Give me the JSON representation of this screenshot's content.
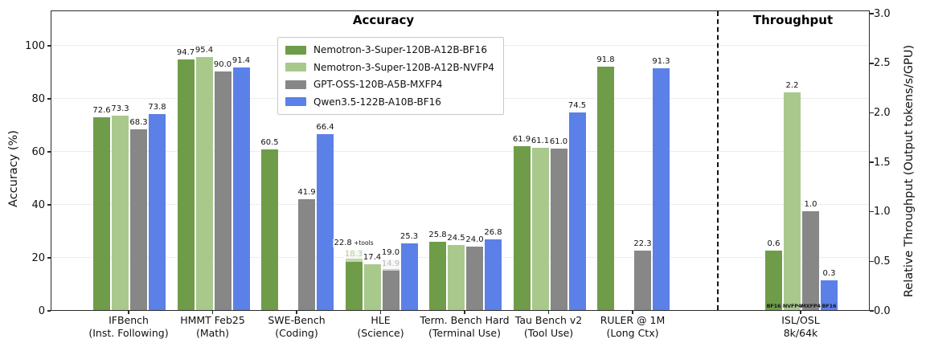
{
  "chart_data": {
    "type": "bar",
    "sections": [
      {
        "title": "Accuracy"
      },
      {
        "title": "Throughput"
      }
    ],
    "left_axis": {
      "label": "Accuracy (%)",
      "ticks": [
        {
          "label": "0",
          "value": 0
        },
        {
          "label": "20",
          "value": 20
        },
        {
          "label": "40",
          "value": 40
        },
        {
          "label": "60",
          "value": 60
        },
        {
          "label": "80",
          "value": 80
        },
        {
          "label": "100",
          "value": 100
        }
      ]
    },
    "right_axis": {
      "label": "Relative Throughput (Output tokens/s/GPU)",
      "ticks": [
        {
          "label": "0.0",
          "value": 0.0
        },
        {
          "label": "0.5",
          "value": 0.5
        },
        {
          "label": "1.0",
          "value": 1.0
        },
        {
          "label": "1.5",
          "value": 1.5
        },
        {
          "label": "2.0",
          "value": 2.0
        },
        {
          "label": "2.5",
          "value": 2.5
        },
        {
          "label": "3.0",
          "value": 3.0
        }
      ]
    },
    "legend": [
      {
        "name": "Nemotron-3-Super-120B-A12B-BF16",
        "color": "#6F9C49",
        "pale": "#b5cf9d"
      },
      {
        "name": "Nemotron-3-Super-120B-A12B-NVFP4",
        "color": "#A9C98C",
        "pale": "#cfe2bd"
      },
      {
        "name": "GPT-OSS-120B-A5B-MXFP4",
        "color": "#878787",
        "pale": "#b8b8b8"
      },
      {
        "name": "Qwen3.5-122B-A10B-BF16",
        "color": "#5B80E8",
        "pale": "#aec0f2"
      }
    ],
    "groups": [
      {
        "label": [
          "IFBench",
          "(Inst. Following)"
        ],
        "axis": "accuracy",
        "bars": [
          {
            "slot": 0,
            "series": 0,
            "value": 72.6,
            "label": "72.6"
          },
          {
            "slot": 1,
            "series": 1,
            "value": 73.3,
            "label": "73.3"
          },
          {
            "slot": 2,
            "series": 2,
            "value": 68.3,
            "label": "68.3"
          },
          {
            "slot": 3,
            "series": 3,
            "value": 73.8,
            "label": "73.8"
          }
        ]
      },
      {
        "label": [
          "HMMT Feb25",
          "(Math)"
        ],
        "axis": "accuracy",
        "bars": [
          {
            "slot": 0,
            "series": 0,
            "value": 94.7,
            "label": "94.7"
          },
          {
            "slot": 1,
            "series": 1,
            "value": 95.4,
            "label": "95.4"
          },
          {
            "slot": 2,
            "series": 2,
            "value": 90.0,
            "label": "90.0"
          },
          {
            "slot": 3,
            "series": 3,
            "value": 91.4,
            "label": "91.4"
          }
        ]
      },
      {
        "label": [
          "SWE-Bench",
          "(Coding)"
        ],
        "axis": "accuracy",
        "bars": [
          {
            "slot": 0,
            "series": 0,
            "value": 60.5,
            "label": "60.5"
          },
          {
            "slot": 2,
            "series": 2,
            "value": 41.9,
            "label": "41.9"
          },
          {
            "slot": 3,
            "series": 3,
            "value": 66.4,
            "label": "66.4"
          }
        ]
      },
      {
        "label": [
          "HLE",
          "(Science)"
        ],
        "axis": "accuracy",
        "bars": [
          {
            "slot": 0,
            "series": 0,
            "value": 18.3,
            "label": "18.3",
            "overlay": {
              "value": 22.8,
              "label": "22.8",
              "suffix": "+tools"
            }
          },
          {
            "slot": 1,
            "series": 1,
            "value": 17.4,
            "label": "17.4"
          },
          {
            "slot": 2,
            "series": 2,
            "value": 14.9,
            "label": "14.9",
            "overlay": {
              "value": 19.0,
              "label": "19.0",
              "suffix": ""
            }
          },
          {
            "slot": 3,
            "series": 3,
            "value": 25.3,
            "label": "25.3"
          }
        ]
      },
      {
        "label": [
          "Term. Bench Hard",
          "(Terminal Use)"
        ],
        "axis": "accuracy",
        "bars": [
          {
            "slot": 0,
            "series": 0,
            "value": 25.8,
            "label": "25.8"
          },
          {
            "slot": 1,
            "series": 1,
            "value": 24.5,
            "label": "24.5"
          },
          {
            "slot": 2,
            "series": 2,
            "value": 24.0,
            "label": "24.0"
          },
          {
            "slot": 3,
            "series": 3,
            "value": 26.8,
            "label": "26.8"
          }
        ]
      },
      {
        "label": [
          "Tau Bench v2",
          "(Tool Use)"
        ],
        "axis": "accuracy",
        "bars": [
          {
            "slot": 0,
            "series": 0,
            "value": 61.9,
            "label": "61.9"
          },
          {
            "slot": 1,
            "series": 1,
            "value": 61.1,
            "label": "61.1"
          },
          {
            "slot": 2,
            "series": 2,
            "value": 61.0,
            "label": "61.0"
          },
          {
            "slot": 3,
            "series": 3,
            "value": 74.5,
            "label": "74.5"
          }
        ]
      },
      {
        "label": [
          "RULER @ 1M",
          "(Long Ctx)"
        ],
        "axis": "accuracy",
        "bars": [
          {
            "slot": 0,
            "series": 0,
            "value": 91.8,
            "label": "91.8"
          },
          {
            "slot": 2,
            "series": 2,
            "value": 22.3,
            "label": "22.3"
          },
          {
            "slot": 3,
            "series": 3,
            "value": 91.3,
            "label": "91.3"
          }
        ]
      },
      {
        "label": [
          "ISL/OSL",
          "8k/64k"
        ],
        "axis": "throughput",
        "bars": [
          {
            "slot": 0,
            "series": 0,
            "value": 0.6,
            "label": "0.6",
            "inner_bottom_label": "BF16"
          },
          {
            "slot": 1,
            "series": 1,
            "value": 2.2,
            "label": "2.2",
            "inner_bottom_label": "NVFP4"
          },
          {
            "slot": 2,
            "series": 2,
            "value": 1.0,
            "label": "1.0",
            "inner_bottom_label": "MXFP4"
          },
          {
            "slot": 3,
            "series": 3,
            "value": 0.3,
            "label": "0.3",
            "inner_bottom_label": "BF16"
          }
        ]
      }
    ]
  }
}
